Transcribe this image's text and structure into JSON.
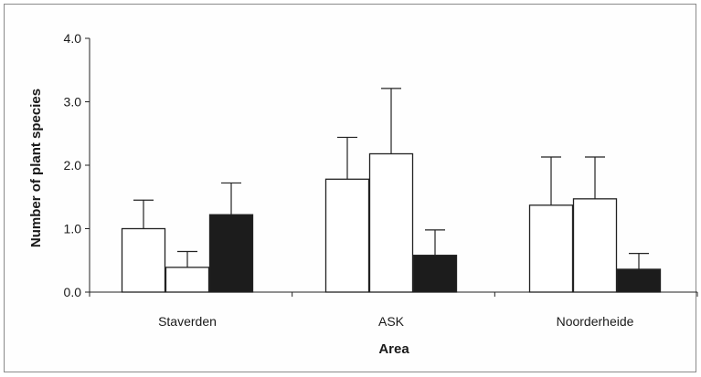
{
  "chart_data": {
    "type": "bar",
    "title": "",
    "xlabel": "Area",
    "ylabel": "Number of plant species",
    "categories": [
      "Staverden",
      "ASK",
      "Noorderheide"
    ],
    "ylim": [
      0,
      4.0
    ],
    "yticks": [
      "0.0",
      "1.0",
      "2.0",
      "3.0",
      "4.0"
    ],
    "grid": false,
    "legend": "none",
    "series": [
      {
        "fill": "#ffffff",
        "values": [
          1.0,
          1.78,
          1.37
        ],
        "errors": [
          0.45,
          0.66,
          0.76
        ]
      },
      {
        "fill": "#ffffff",
        "values": [
          0.39,
          2.18,
          1.47
        ],
        "errors": [
          0.25,
          1.03,
          0.66
        ]
      },
      {
        "fill": "#1c1c1c",
        "values": [
          1.22,
          0.58,
          0.36
        ],
        "errors": [
          0.5,
          0.4,
          0.25
        ]
      }
    ]
  }
}
